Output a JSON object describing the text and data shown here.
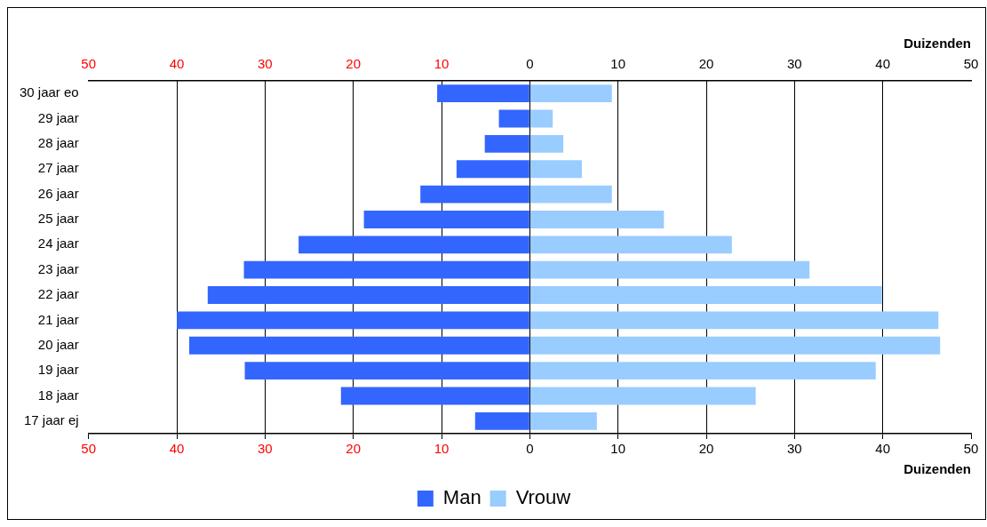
{
  "chart_data": {
    "type": "bar",
    "orientation": "horizontal",
    "stacked": true,
    "categories": [
      "30 jaar eo",
      "29 jaar",
      "28 jaar",
      "27 jaar",
      "26 jaar",
      "25 jaar",
      "24 jaar",
      "23 jaar",
      "22 jaar",
      "21 jaar",
      "20 jaar",
      "19 jaar",
      "18 jaar",
      "17 jaar ej"
    ],
    "series": [
      {
        "name": "Man",
        "color": "#3366ff",
        "values": [
          -10.5,
          -3.5,
          -5.1,
          -8.3,
          -12.4,
          -18.8,
          -26.2,
          -32.4,
          -36.5,
          -40,
          -38.6,
          -32.3,
          -21.4,
          -6.2
        ]
      },
      {
        "name": "Vrouw",
        "color": "#99ccff",
        "values": [
          9.3,
          2.6,
          3.8,
          5.9,
          9.3,
          15.2,
          22.9,
          31.7,
          39.9,
          46.3,
          46.5,
          39.2,
          25.6,
          7.6
        ]
      }
    ],
    "xlim": [
      -50,
      50
    ],
    "xticks": [
      {
        "value": -50,
        "label": "50"
      },
      {
        "value": -40,
        "label": "40"
      },
      {
        "value": -30,
        "label": "30"
      },
      {
        "value": -20,
        "label": "20"
      },
      {
        "value": -10,
        "label": "10"
      },
      0,
      10,
      20,
      30,
      40,
      50
    ],
    "x2lim": [
      -50,
      50
    ],
    "x2ticks": [
      {
        "value": -50,
        "label": "50"
      },
      {
        "value": -40,
        "label": "40"
      },
      {
        "value": -30,
        "label": "30"
      },
      {
        "value": -20,
        "label": "20"
      },
      {
        "value": -10,
        "label": "10"
      },
      0,
      10,
      20,
      30,
      40,
      50
    ],
    "xlabel": "Duizenden",
    "x2label": "Duizenden",
    "grid": "x",
    "legend": "bottom"
  }
}
